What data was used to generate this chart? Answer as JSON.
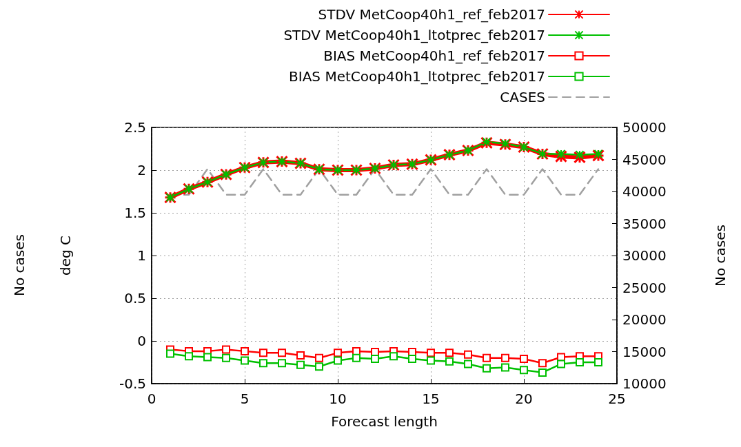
{
  "chart_data": {
    "type": "line",
    "xlabel": "Forecast length",
    "ylabel": "deg C",
    "y2label": "No cases",
    "annotations": [
      "No cases"
    ],
    "x": [
      1,
      2,
      3,
      4,
      5,
      6,
      7,
      8,
      9,
      10,
      11,
      12,
      13,
      14,
      15,
      16,
      17,
      18,
      19,
      20,
      21,
      22,
      23,
      24
    ],
    "xlim": [
      0,
      25
    ],
    "xticks": [
      0,
      5,
      10,
      15,
      20,
      25
    ],
    "ylim": [
      -0.5,
      2.5
    ],
    "yticks": [
      -0.5,
      0,
      0.5,
      1,
      1.5,
      2,
      2.5
    ],
    "y2lim": [
      10000,
      50000
    ],
    "y2ticks": [
      10000,
      15000,
      20000,
      25000,
      30000,
      35000,
      40000,
      45000,
      50000
    ],
    "grid": true,
    "legend": "top right",
    "series": [
      {
        "name": "STDV MetCoop40h1_ref_feb2017",
        "color": "#ff0000",
        "marker": "cross",
        "values": [
          1.68,
          1.78,
          1.86,
          1.95,
          2.03,
          2.09,
          2.1,
          2.08,
          2.01,
          2.0,
          2.0,
          2.02,
          2.06,
          2.07,
          2.12,
          2.18,
          2.23,
          2.32,
          2.3,
          2.27,
          2.19,
          2.16,
          2.15,
          2.17
        ]
      },
      {
        "name": "STDV MetCoop40h1_ltotprec_feb2017",
        "color": "#00c000",
        "marker": "cross",
        "values": [
          1.68,
          1.78,
          1.86,
          1.95,
          2.03,
          2.09,
          2.1,
          2.08,
          2.01,
          2.0,
          2.0,
          2.02,
          2.06,
          2.07,
          2.12,
          2.18,
          2.23,
          2.33,
          2.31,
          2.27,
          2.19,
          2.19,
          2.18,
          2.19
        ]
      },
      {
        "name": "BIAS MetCoop40h1_ref_feb2017",
        "color": "#ff0000",
        "marker": "square",
        "values": [
          -0.1,
          -0.12,
          -0.12,
          -0.1,
          -0.12,
          -0.14,
          -0.14,
          -0.17,
          -0.2,
          -0.14,
          -0.12,
          -0.13,
          -0.12,
          -0.13,
          -0.14,
          -0.14,
          -0.16,
          -0.2,
          -0.2,
          -0.21,
          -0.26,
          -0.19,
          -0.18,
          -0.18
        ]
      },
      {
        "name": "BIAS MetCoop40h1_ltotprec_feb2017",
        "color": "#00c000",
        "marker": "square",
        "values": [
          -0.15,
          -0.18,
          -0.19,
          -0.2,
          -0.23,
          -0.26,
          -0.26,
          -0.28,
          -0.3,
          -0.23,
          -0.2,
          -0.21,
          -0.18,
          -0.21,
          -0.23,
          -0.24,
          -0.27,
          -0.32,
          -0.31,
          -0.34,
          -0.37,
          -0.27,
          -0.25,
          -0.25
        ]
      },
      {
        "name": "CASES",
        "color": "#a0a0a0",
        "marker": "none",
        "line_style": "dashed",
        "axis": "y2",
        "values": [
          39500,
          39500,
          43500,
          39500,
          39500,
          43500,
          39500,
          39500,
          43500,
          39500,
          39500,
          43500,
          39500,
          39500,
          43500,
          39500,
          39500,
          43500,
          39500,
          39500,
          43500,
          39500,
          39500,
          43500
        ]
      }
    ]
  }
}
